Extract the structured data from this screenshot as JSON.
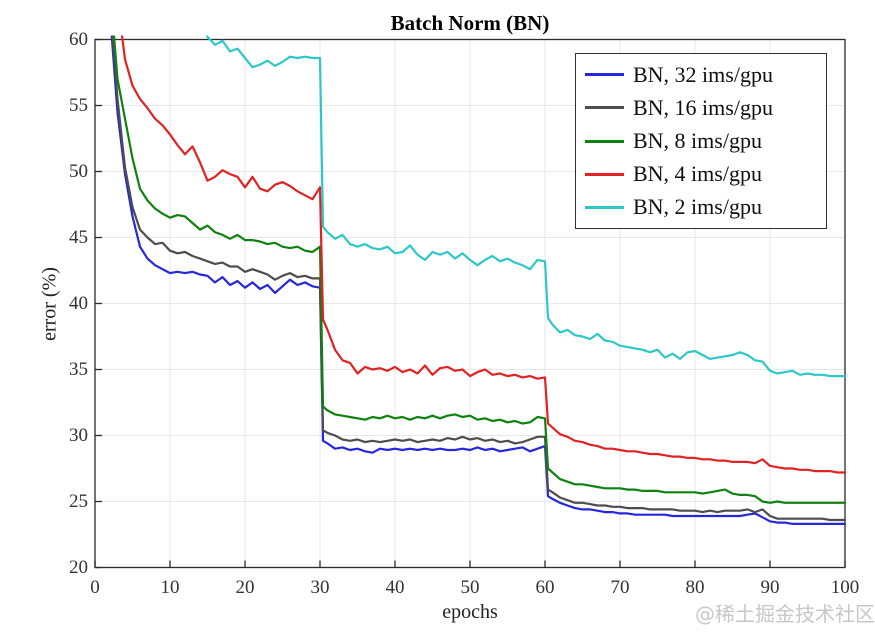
{
  "figure": {
    "watermark": "@稀土掘金技术社区"
  },
  "chart_data": {
    "type": "line",
    "title": "Batch Norm (BN)",
    "xlabel": "epochs",
    "ylabel": "error (%)",
    "xlim": [
      0,
      100
    ],
    "ylim": [
      20,
      60
    ],
    "xticks": [
      0,
      10,
      20,
      30,
      40,
      50,
      60,
      70,
      80,
      90,
      100
    ],
    "yticks": [
      20,
      25,
      30,
      35,
      40,
      45,
      50,
      55,
      60
    ],
    "grid": true,
    "grid_color": "#e7e7e7",
    "frame_color": "#2b2b2b",
    "legend_position": "top-right",
    "series": [
      {
        "name": "BN, 32 ims/gpu",
        "color": "#2626dd",
        "x": [
          2,
          3,
          4,
          5,
          6,
          7,
          8,
          9,
          10,
          11,
          12,
          13,
          14,
          15,
          16,
          17,
          18,
          19,
          20,
          21,
          22,
          23,
          24,
          25,
          26,
          27,
          28,
          29,
          30,
          30.4,
          31,
          32,
          33,
          34,
          35,
          36,
          37,
          38,
          39,
          40,
          41,
          42,
          43,
          44,
          45,
          46,
          47,
          48,
          49,
          50,
          51,
          52,
          53,
          54,
          55,
          56,
          57,
          58,
          59,
          60,
          60.4,
          61,
          62,
          63,
          64,
          65,
          66,
          67,
          68,
          69,
          70,
          71,
          72,
          73,
          74,
          75,
          76,
          77,
          78,
          79,
          80,
          81,
          82,
          83,
          84,
          85,
          86,
          87,
          88,
          89,
          90,
          91,
          92,
          93,
          94,
          95,
          96,
          97,
          98,
          99,
          100
        ],
        "y": [
          62,
          54.5,
          49.8,
          46.6,
          44.3,
          43.4,
          42.9,
          42.6,
          42.3,
          42.4,
          42.3,
          42.4,
          42.2,
          42.1,
          41.6,
          42.0,
          41.4,
          41.7,
          41.2,
          41.6,
          41.1,
          41.4,
          40.8,
          41.3,
          41.8,
          41.4,
          41.6,
          41.3,
          41.2,
          29.6,
          29.4,
          29.0,
          29.1,
          28.9,
          29.0,
          28.8,
          28.7,
          29.0,
          28.9,
          29.0,
          28.9,
          29.0,
          28.9,
          29.0,
          28.9,
          29.0,
          28.9,
          28.9,
          29.0,
          28.9,
          29.1,
          28.9,
          29.0,
          28.8,
          28.9,
          29.0,
          29.1,
          28.8,
          29.0,
          29.2,
          25.4,
          25.2,
          24.9,
          24.7,
          24.5,
          24.4,
          24.4,
          24.3,
          24.2,
          24.2,
          24.1,
          24.1,
          24.0,
          24.0,
          24.0,
          24.0,
          24.0,
          23.9,
          23.9,
          23.9,
          23.9,
          23.9,
          23.9,
          23.9,
          23.9,
          23.9,
          23.9,
          24.0,
          24.1,
          23.8,
          23.5,
          23.4,
          23.4,
          23.3,
          23.3,
          23.3,
          23.3,
          23.3,
          23.3,
          23.3,
          23.3
        ]
      },
      {
        "name": "BN, 16 ims/gpu",
        "color": "#4d4d4d",
        "x": [
          2,
          3,
          4,
          5,
          6,
          7,
          8,
          9,
          10,
          11,
          12,
          13,
          14,
          15,
          16,
          17,
          18,
          19,
          20,
          21,
          22,
          23,
          24,
          25,
          26,
          27,
          28,
          29,
          30,
          30.4,
          31,
          32,
          33,
          34,
          35,
          36,
          37,
          38,
          39,
          40,
          41,
          42,
          43,
          44,
          45,
          46,
          47,
          48,
          49,
          50,
          51,
          52,
          53,
          54,
          55,
          56,
          57,
          58,
          59,
          60,
          60.4,
          61,
          62,
          63,
          64,
          65,
          66,
          67,
          68,
          69,
          70,
          71,
          72,
          73,
          74,
          75,
          76,
          77,
          78,
          79,
          80,
          81,
          82,
          83,
          84,
          85,
          86,
          87,
          88,
          89,
          90,
          91,
          92,
          93,
          94,
          95,
          96,
          97,
          98,
          99,
          100
        ],
        "y": [
          63,
          55.5,
          50.3,
          47.3,
          45.6,
          45.0,
          44.5,
          44.6,
          44.0,
          43.8,
          43.9,
          43.6,
          43.4,
          43.2,
          43.0,
          43.1,
          42.8,
          42.8,
          42.4,
          42.6,
          42.4,
          42.2,
          41.8,
          42.1,
          42.3,
          42.0,
          42.1,
          41.9,
          41.9,
          30.4,
          30.2,
          30.0,
          29.7,
          29.6,
          29.7,
          29.5,
          29.6,
          29.5,
          29.6,
          29.7,
          29.6,
          29.7,
          29.5,
          29.6,
          29.7,
          29.6,
          29.8,
          29.7,
          29.9,
          29.7,
          29.8,
          29.6,
          29.7,
          29.5,
          29.6,
          29.4,
          29.5,
          29.7,
          29.9,
          29.9,
          25.9,
          25.7,
          25.3,
          25.1,
          24.9,
          24.9,
          24.8,
          24.7,
          24.7,
          24.6,
          24.6,
          24.5,
          24.5,
          24.5,
          24.4,
          24.4,
          24.4,
          24.4,
          24.3,
          24.3,
          24.3,
          24.2,
          24.3,
          24.2,
          24.3,
          24.3,
          24.3,
          24.4,
          24.2,
          24.4,
          23.9,
          23.7,
          23.7,
          23.7,
          23.7,
          23.7,
          23.7,
          23.7,
          23.6,
          23.6,
          23.6
        ]
      },
      {
        "name": "BN, 8 ims/gpu",
        "color": "#0e820e",
        "x": [
          2,
          3,
          4,
          5,
          6,
          7,
          8,
          9,
          10,
          11,
          12,
          13,
          14,
          15,
          16,
          17,
          18,
          19,
          20,
          21,
          22,
          23,
          24,
          25,
          26,
          27,
          28,
          29,
          30,
          30.4,
          31,
          32,
          33,
          34,
          35,
          36,
          37,
          38,
          39,
          40,
          41,
          42,
          43,
          44,
          45,
          46,
          47,
          48,
          49,
          50,
          51,
          52,
          53,
          54,
          55,
          56,
          57,
          58,
          59,
          60,
          60.4,
          61,
          62,
          63,
          64,
          65,
          66,
          67,
          68,
          69,
          70,
          71,
          72,
          73,
          74,
          75,
          76,
          77,
          78,
          79,
          80,
          81,
          82,
          83,
          84,
          85,
          86,
          87,
          88,
          89,
          90,
          91,
          92,
          93,
          94,
          95,
          96,
          97,
          98,
          99,
          100
        ],
        "y": [
          64,
          57.0,
          54.0,
          51.0,
          48.7,
          47.8,
          47.2,
          46.8,
          46.5,
          46.7,
          46.6,
          46.1,
          45.6,
          45.9,
          45.4,
          45.2,
          44.9,
          45.2,
          44.8,
          44.8,
          44.7,
          44.5,
          44.6,
          44.3,
          44.2,
          44.3,
          44.0,
          43.9,
          44.3,
          32.2,
          31.9,
          31.6,
          31.5,
          31.4,
          31.3,
          31.2,
          31.4,
          31.3,
          31.5,
          31.3,
          31.4,
          31.2,
          31.4,
          31.3,
          31.5,
          31.3,
          31.5,
          31.6,
          31.4,
          31.5,
          31.2,
          31.3,
          31.1,
          31.2,
          31.0,
          31.1,
          30.9,
          31.0,
          31.4,
          31.3,
          27.5,
          27.2,
          26.7,
          26.5,
          26.3,
          26.3,
          26.2,
          26.1,
          26.0,
          26.0,
          26.0,
          25.9,
          25.9,
          25.8,
          25.8,
          25.8,
          25.7,
          25.7,
          25.7,
          25.7,
          25.7,
          25.6,
          25.7,
          25.8,
          25.9,
          25.6,
          25.5,
          25.5,
          25.4,
          25.0,
          24.9,
          25.0,
          24.9,
          24.9,
          24.9,
          24.9,
          24.9,
          24.9,
          24.9,
          24.9,
          24.9
        ]
      },
      {
        "name": "BN, 4 ims/gpu",
        "color": "#e02222",
        "x": [
          2,
          3,
          4,
          5,
          6,
          7,
          8,
          9,
          10,
          11,
          12,
          13,
          14,
          15,
          16,
          17,
          18,
          19,
          20,
          21,
          22,
          23,
          24,
          25,
          26,
          27,
          28,
          29,
          30,
          30.4,
          31,
          32,
          33,
          34,
          35,
          36,
          37,
          38,
          39,
          40,
          41,
          42,
          43,
          44,
          45,
          46,
          47,
          48,
          49,
          50,
          51,
          52,
          53,
          54,
          55,
          56,
          57,
          58,
          59,
          60,
          60.4,
          61,
          62,
          63,
          64,
          65,
          66,
          67,
          68,
          69,
          70,
          71,
          72,
          73,
          74,
          75,
          76,
          77,
          78,
          79,
          80,
          81,
          82,
          83,
          84,
          85,
          86,
          87,
          88,
          89,
          90,
          91,
          92,
          93,
          94,
          95,
          96,
          97,
          98,
          99,
          100
        ],
        "y": [
          70,
          63,
          58.5,
          56.5,
          55.5,
          54.8,
          54.0,
          53.5,
          52.8,
          52.0,
          51.3,
          51.9,
          50.7,
          49.3,
          49.6,
          50.1,
          49.8,
          49.6,
          48.8,
          49.6,
          48.7,
          48.5,
          49.0,
          49.2,
          48.9,
          48.5,
          48.2,
          47.9,
          48.8,
          38.8,
          38.0,
          36.5,
          35.7,
          35.5,
          34.7,
          35.2,
          35.0,
          35.1,
          34.9,
          35.2,
          34.8,
          35.0,
          34.7,
          35.3,
          34.6,
          35.1,
          35.2,
          34.9,
          35.0,
          34.5,
          34.8,
          35.0,
          34.6,
          34.7,
          34.5,
          34.6,
          34.4,
          34.5,
          34.3,
          34.4,
          30.9,
          30.6,
          30.1,
          29.9,
          29.6,
          29.5,
          29.3,
          29.2,
          29.0,
          29.0,
          28.9,
          28.8,
          28.8,
          28.7,
          28.6,
          28.6,
          28.5,
          28.4,
          28.4,
          28.3,
          28.3,
          28.2,
          28.2,
          28.1,
          28.1,
          28.0,
          28.0,
          28.0,
          27.9,
          28.2,
          27.7,
          27.6,
          27.5,
          27.5,
          27.4,
          27.4,
          27.3,
          27.3,
          27.3,
          27.2,
          27.2
        ]
      },
      {
        "name": "BN, 2 ims/gpu",
        "color": "#2ec7c7",
        "x": [
          14,
          15,
          16,
          17,
          18,
          19,
          20,
          21,
          22,
          23,
          24,
          25,
          26,
          27,
          28,
          29,
          30,
          30.4,
          31,
          32,
          33,
          34,
          35,
          36,
          37,
          38,
          39,
          40,
          41,
          42,
          43,
          44,
          45,
          46,
          47,
          48,
          49,
          50,
          51,
          52,
          53,
          54,
          55,
          56,
          57,
          58,
          59,
          60,
          60.4,
          61,
          62,
          63,
          64,
          65,
          66,
          67,
          68,
          69,
          70,
          71,
          72,
          73,
          74,
          75,
          76,
          77,
          78,
          79,
          80,
          81,
          82,
          83,
          84,
          85,
          86,
          87,
          88,
          89,
          90,
          91,
          92,
          93,
          94,
          95,
          96,
          97,
          98,
          99,
          100
        ],
        "y": [
          62,
          60.2,
          59.6,
          59.9,
          59.1,
          59.3,
          58.6,
          57.9,
          58.1,
          58.4,
          58.0,
          58.3,
          58.7,
          58.6,
          58.7,
          58.6,
          58.6,
          45.8,
          45.4,
          44.9,
          45.2,
          44.5,
          44.3,
          44.5,
          44.2,
          44.1,
          44.3,
          43.8,
          43.9,
          44.4,
          43.7,
          43.3,
          43.9,
          43.7,
          43.9,
          43.4,
          43.8,
          43.3,
          42.9,
          43.3,
          43.6,
          43.2,
          43.4,
          43.1,
          42.9,
          42.6,
          43.3,
          43.2,
          38.9,
          38.4,
          37.8,
          38.0,
          37.6,
          37.5,
          37.3,
          37.7,
          37.2,
          37.1,
          36.8,
          36.7,
          36.6,
          36.5,
          36.3,
          36.5,
          35.9,
          36.2,
          35.8,
          36.3,
          36.4,
          36.1,
          35.8,
          35.9,
          36.0,
          36.1,
          36.3,
          36.1,
          35.7,
          35.6,
          34.9,
          34.7,
          34.8,
          34.9,
          34.6,
          34.7,
          34.6,
          34.6,
          34.5,
          34.5,
          34.5
        ]
      }
    ]
  }
}
